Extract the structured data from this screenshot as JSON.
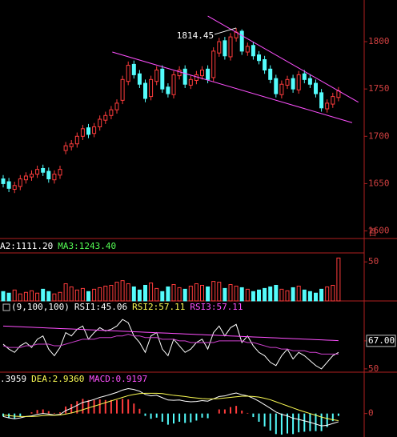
{
  "chart_data": [
    {
      "type": "candlestick",
      "open": [
        1655,
        1652,
        1644,
        1647,
        1654,
        1657,
        1660,
        1666,
        1663,
        1654,
        1659,
        1685,
        1689,
        1692,
        1700,
        1709,
        1703,
        1710,
        1717,
        1722,
        1728,
        1738,
        1758,
        1776,
        1766,
        1756,
        1742,
        1758,
        1771,
        1752,
        1744,
        1764,
        1771,
        1754,
        1759,
        1764,
        1771,
        1762,
        1788,
        1801,
        1784,
        1804,
        1811,
        1789,
        1796,
        1786,
        1781,
        1771,
        1761,
        1744,
        1754,
        1761,
        1749,
        1766,
        1761,
        1756,
        1746,
        1729,
        1734,
        1741
      ],
      "high": [
        1659,
        1656,
        1652,
        1659,
        1662,
        1664,
        1669,
        1670,
        1667,
        1664,
        1669,
        1694,
        1696,
        1704,
        1712,
        1713,
        1714,
        1722,
        1726,
        1732,
        1739,
        1764,
        1779,
        1780,
        1770,
        1760,
        1764,
        1774,
        1775,
        1756,
        1769,
        1774,
        1775,
        1764,
        1769,
        1774,
        1775,
        1794,
        1804,
        1805,
        1809,
        1814.45,
        1813,
        1799,
        1800,
        1790,
        1785,
        1775,
        1765,
        1759,
        1764,
        1765,
        1769,
        1770,
        1765,
        1760,
        1750,
        1739,
        1746,
        1752
      ],
      "low": [
        1646,
        1641,
        1640,
        1643,
        1650,
        1653,
        1656,
        1658,
        1651,
        1650,
        1655,
        1681,
        1685,
        1688,
        1696,
        1698,
        1699,
        1706,
        1713,
        1718,
        1724,
        1734,
        1754,
        1761,
        1751,
        1736,
        1738,
        1754,
        1746,
        1741,
        1740,
        1760,
        1751,
        1750,
        1755,
        1760,
        1756,
        1758,
        1784,
        1781,
        1780,
        1800,
        1786,
        1785,
        1781,
        1776,
        1766,
        1756,
        1741,
        1740,
        1750,
        1746,
        1745,
        1756,
        1751,
        1741,
        1726,
        1725,
        1730,
        1737
      ],
      "close": [
        1650,
        1645,
        1648,
        1655,
        1658,
        1660,
        1665,
        1662,
        1655,
        1660,
        1665,
        1690,
        1692,
        1700,
        1708,
        1702,
        1710,
        1718,
        1722,
        1728,
        1735,
        1760,
        1775,
        1765,
        1755,
        1740,
        1760,
        1770,
        1750,
        1745,
        1765,
        1770,
        1755,
        1760,
        1765,
        1770,
        1760,
        1790,
        1800,
        1785,
        1805,
        1810,
        1790,
        1795,
        1785,
        1780,
        1770,
        1760,
        1745,
        1755,
        1760,
        1750,
        1765,
        1760,
        1755,
        1745,
        1730,
        1735,
        1742,
        1748
      ],
      "up_color": "#ff3c3c",
      "down_color": "#54fcfc",
      "ylim": [
        1592,
        1844
      ],
      "yticks": [
        1600,
        1650,
        1700,
        1750,
        1800
      ],
      "peak_index": 41,
      "trendlines": [
        {
          "x": [
            36,
            62.5
          ],
          "y": [
            1827,
            1736
          ],
          "color": "#ff50ff"
        },
        {
          "x": [
            19.2,
            61.4
          ],
          "y": [
            1789,
            1714.4
          ],
          "color": "#ff50ff"
        }
      ]
    },
    {
      "type": "bar",
      "header": [
        {
          "text": "A2:1111.20",
          "color": "#ffffff"
        },
        {
          "text": "MA3:1243.40",
          "color": "#54fc54"
        }
      ],
      "unit": "百",
      "values": [
        12,
        10,
        14,
        9,
        11,
        13,
        10,
        15,
        12,
        9,
        11,
        22,
        18,
        14,
        16,
        12,
        15,
        17,
        19,
        20,
        24,
        26,
        22,
        18,
        14,
        20,
        23,
        16,
        12,
        18,
        21,
        17,
        15,
        19,
        22,
        20,
        18,
        25,
        24,
        16,
        21,
        19,
        17,
        15,
        12,
        14,
        16,
        18,
        20,
        15,
        13,
        17,
        19,
        14,
        12,
        10,
        15,
        18,
        20,
        55
      ],
      "ylim": [
        0,
        61.5
      ],
      "yticks": [
        50
      ]
    },
    {
      "type": "line",
      "header": [
        {
          "text": "(9,100,100)",
          "color": "#ffffff"
        },
        {
          "text": "RSI1:45.06",
          "color": "#ffffff"
        },
        {
          "text": "RSI2:57.11",
          "color": "#fcfc54"
        },
        {
          "text": "RSI3:57.11",
          "color": "#ff50ff"
        }
      ],
      "series": [
        {
          "color": "#ffffff",
          "values": [
            65,
            62,
            60,
            64,
            66,
            63,
            68,
            70,
            62,
            58,
            63,
            72,
            70,
            74,
            76,
            68,
            72,
            75,
            73,
            74,
            76,
            80,
            78,
            70,
            66,
            60,
            70,
            72,
            62,
            58,
            68,
            64,
            60,
            62,
            66,
            68,
            62,
            72,
            76,
            70,
            75,
            77,
            66,
            70,
            64,
            60,
            58,
            54,
            52,
            58,
            62,
            56,
            60,
            58,
            55,
            52,
            50,
            54,
            58,
            60
          ]
        },
        {
          "color": "#d040d0",
          "values": [
            64,
            63,
            63,
            63,
            64,
            64,
            65,
            65,
            65,
            64,
            64,
            65,
            66,
            67,
            68,
            68,
            68,
            69,
            69,
            69,
            70,
            70,
            71,
            70,
            70,
            69,
            69,
            69,
            68,
            68,
            68,
            67,
            67,
            66,
            66,
            66,
            66,
            66,
            67,
            67,
            67,
            67,
            67,
            66,
            66,
            65,
            64,
            63,
            63,
            62,
            62,
            61,
            61,
            61,
            60,
            60,
            59,
            59,
            59,
            59
          ]
        },
        {
          "color": "#ff50ff",
          "values": [
            76,
            75.85,
            75.7,
            75.55,
            75.4,
            75.25,
            75.1,
            74.95,
            74.8,
            74.65,
            74.5,
            74.35,
            74.2,
            74.05,
            73.9,
            73.75,
            73.6,
            73.45,
            73.3,
            73.15,
            73,
            72.85,
            72.7,
            72.55,
            72.4,
            72.25,
            72.1,
            71.95,
            71.8,
            71.65,
            71.5,
            71.35,
            71.2,
            71.05,
            70.9,
            70.75,
            70.6,
            70.45,
            70.3,
            70.15,
            70,
            69.85,
            69.7,
            69.55,
            69.4,
            69.25,
            69.1,
            68.95,
            68.8,
            68.65,
            68.5,
            68.35,
            68.2,
            68.05,
            67.9,
            67.75,
            67.6,
            67.45,
            67.3,
            67.15
          ]
        }
      ],
      "ylim": [
        48,
        82
      ],
      "yticks": [
        50,
        {
          "value": 67,
          "label": "67.00"
        }
      ]
    },
    {
      "type": "macd",
      "header": [
        {
          "text": ".3959",
          "color": "#ffffff"
        },
        {
          "text": "DEA:2.9360",
          "color": "#fcfc54"
        },
        {
          "text": "MACD:0.9197",
          "color": "#ff50ff"
        }
      ],
      "series": [
        {
          "color": "#ffffff",
          "values": [
            -1,
            -1.5,
            -1.8,
            -1.5,
            -1,
            -0.8,
            -0.3,
            0,
            -0.2,
            -0.5,
            -0.3,
            1,
            1.8,
            2.8,
            3.8,
            4.2,
            4.8,
            5.5,
            6,
            6.6,
            7.2,
            8,
            8.5,
            8.2,
            7.6,
            6.5,
            6,
            6.2,
            5.4,
            4.6,
            4.5,
            4.6,
            4.2,
            4,
            4.1,
            4.4,
            4.2,
            5,
            5.8,
            6,
            6.6,
            7,
            6.4,
            6,
            5.2,
            4.2,
            3,
            1.8,
            0.5,
            -0.3,
            -0.8,
            -1.6,
            -2,
            -2.5,
            -3,
            -3.6,
            -4.2,
            -4,
            -3.4,
            -2.8
          ]
        },
        {
          "color": "#fcfc54",
          "values": [
            -0.5,
            -0.7,
            -0.9,
            -1,
            -1,
            -1,
            -0.9,
            -0.7,
            -0.6,
            -0.6,
            -0.5,
            -0.2,
            0.2,
            0.7,
            1.3,
            1.9,
            2.5,
            3.1,
            3.7,
            4.3,
            4.9,
            5.5,
            6.1,
            6.5,
            6.8,
            6.9,
            6.9,
            6.9,
            6.8,
            6.5,
            6.2,
            6,
            5.8,
            5.5,
            5.3,
            5.1,
            5,
            5,
            5.1,
            5.3,
            5.5,
            5.7,
            5.9,
            5.9,
            5.8,
            5.6,
            5.2,
            4.7,
            4,
            3.3,
            2.6,
            1.9,
            1.2,
            0.6,
            0,
            -0.6,
            -1.2,
            -1.7,
            -2.1,
            -2.4
          ]
        }
      ],
      "bars": [
        -1,
        -1.6,
        -1.8,
        -1,
        0,
        0.4,
        1.2,
        1.4,
        0.8,
        0.2,
        0.4,
        2.4,
        3.2,
        4.2,
        5,
        4.6,
        4.6,
        4.8,
        4.6,
        4.6,
        4.6,
        5,
        4.8,
        3.4,
        1.6,
        -0.8,
        -1.8,
        -1.4,
        -2.8,
        -3.8,
        -3.4,
        -2.8,
        -3.2,
        -3,
        -2.4,
        -1.4,
        -1.6,
        0,
        1.4,
        1.4,
        2.2,
        2.6,
        1,
        0.2,
        -1.2,
        -2.8,
        -4.4,
        -5.8,
        -7,
        -7.2,
        -6.8,
        -7,
        -6.4,
        -6.2,
        -6,
        -6,
        -6,
        -4.6,
        -2.6,
        -0.8
      ],
      "up_color": "#ff3c3c",
      "down_color": "#54fcfc",
      "ylim": [
        -8,
        10
      ],
      "yticks": [
        0
      ]
    }
  ]
}
